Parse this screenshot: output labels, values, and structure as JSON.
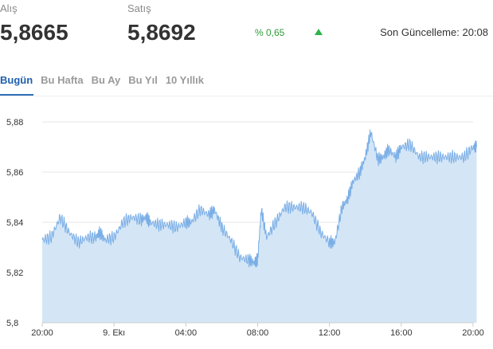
{
  "quote": {
    "buy_label": "Alış",
    "buy_value": "5,8665",
    "sell_label": "Satış",
    "sell_value": "5,8692",
    "change_text": "% 0,65",
    "change_direction": "up",
    "updated_text": "Son Güncelleme: 20:08"
  },
  "tabs": [
    {
      "label": "Bugün",
      "active": true
    },
    {
      "label": "Bu Hafta",
      "active": false
    },
    {
      "label": "Bu Ay",
      "active": false
    },
    {
      "label": "Bu Yıl",
      "active": false
    },
    {
      "label": "10 Yıllık",
      "active": false
    }
  ],
  "colors": {
    "line": "#7aaee6",
    "fill": "#d4e6f6",
    "grid": "#e6e6e6",
    "up": "#2db34a",
    "tab_active": "#1f5fae"
  },
  "chart_data": {
    "type": "area",
    "title": "",
    "xlabel": "",
    "ylabel": "",
    "ylim": [
      5.8,
      5.88
    ],
    "y_ticks": [
      "5,88",
      "5,86",
      "5,84",
      "5,82",
      "5,8"
    ],
    "y_tick_values": [
      5.88,
      5.86,
      5.84,
      5.82,
      5.8
    ],
    "x_tick_labels": [
      "20:00",
      "9. Ekı",
      "04:00",
      "08:00",
      "12:00",
      "16:00",
      "20:00"
    ],
    "x_tick_hours": [
      0,
      4,
      8,
      12,
      16,
      20,
      24
    ],
    "grid": true,
    "series": [
      {
        "x": [
          0,
          0.5,
          1,
          1.5,
          2,
          2.5,
          3,
          3.2,
          3.5,
          4,
          4.5,
          5,
          5.5,
          5.8,
          6,
          6.5,
          7,
          7.5,
          8,
          8.3,
          8.8,
          9.3,
          9.6,
          10,
          10.5,
          11,
          11.5,
          11.8,
          12,
          12.2,
          12.5,
          13,
          13.5,
          14,
          14.5,
          15,
          15.5,
          16,
          16.3,
          16.7,
          17,
          17.3,
          17.7,
          18,
          18.3,
          18.7,
          19,
          19.3,
          19.7,
          20,
          20.5,
          21,
          21.5,
          22,
          22.5,
          23,
          23.5,
          24,
          24.2
        ],
        "values": [
          5.833,
          5.834,
          5.842,
          5.836,
          5.832,
          5.834,
          5.834,
          5.836,
          5.833,
          5.834,
          5.84,
          5.842,
          5.841,
          5.842,
          5.84,
          5.839,
          5.839,
          5.838,
          5.84,
          5.84,
          5.845,
          5.843,
          5.845,
          5.838,
          5.833,
          5.826,
          5.825,
          5.824,
          5.825,
          5.845,
          5.834,
          5.84,
          5.846,
          5.846,
          5.846,
          5.844,
          5.836,
          5.832,
          5.832,
          5.846,
          5.849,
          5.856,
          5.86,
          5.866,
          5.876,
          5.865,
          5.866,
          5.869,
          5.866,
          5.87,
          5.871,
          5.866,
          5.866,
          5.866,
          5.866,
          5.866,
          5.866,
          5.87,
          5.87
        ]
      }
    ]
  }
}
